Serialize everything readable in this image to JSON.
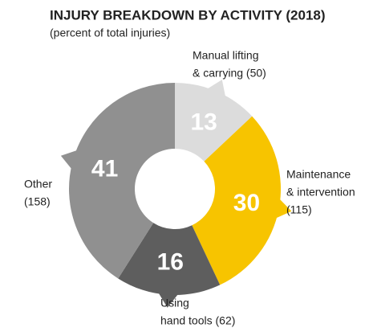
{
  "chart_data": {
    "type": "donut",
    "title": "INJURY BREAKDOWN BY ACTIVITY (2018)",
    "subtitle": "(percent of total injuries)",
    "categories": [
      [
        "Manual lifting",
        "& carrying (50)"
      ],
      [
        "Maintenance",
        "& intervention",
        "(115)"
      ],
      [
        "Using",
        "hand tools (62)"
      ],
      [
        "Other",
        "(158)"
      ]
    ],
    "values": [
      13,
      30,
      16,
      41
    ],
    "colors": [
      "#dcdcdc",
      "#f7c400",
      "#5e5e5e",
      "#909090"
    ]
  }
}
